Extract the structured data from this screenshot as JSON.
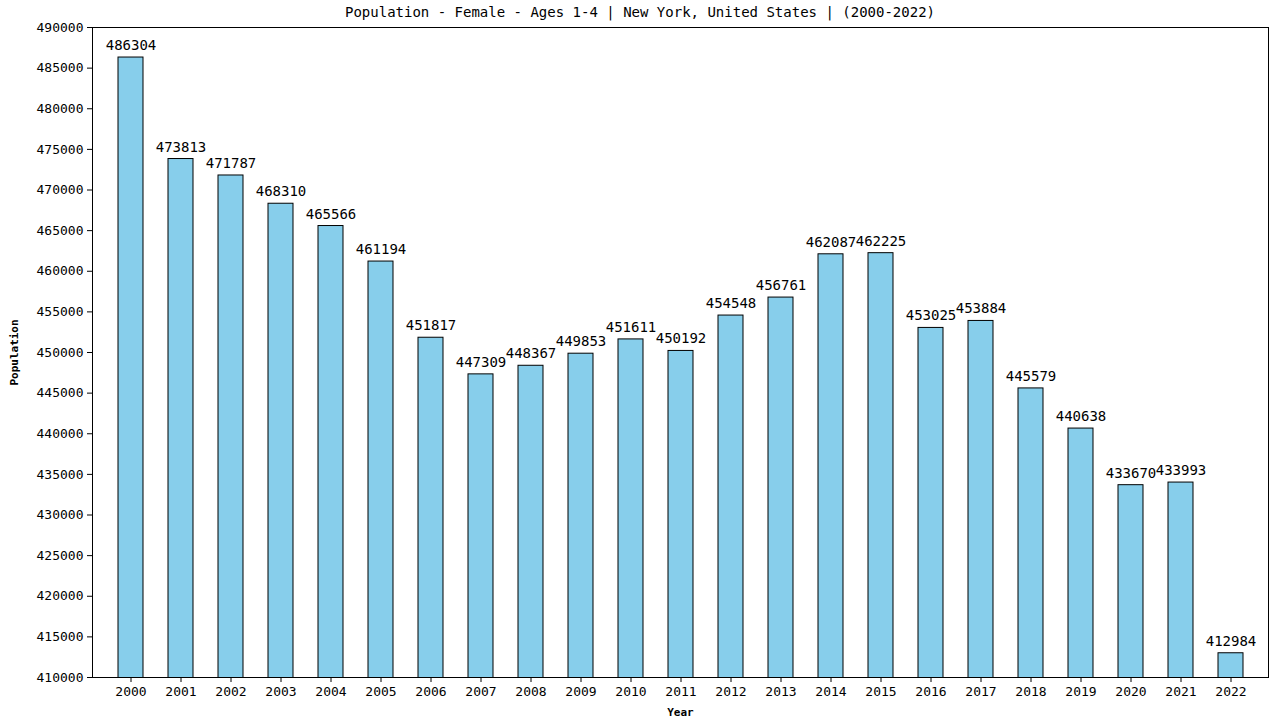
{
  "chart_data": {
    "type": "bar",
    "title": "Population - Female - Ages 1-4 | New York, United States |  (2000-2022)",
    "x_label": "Year",
    "y_label": "Population",
    "categories": [
      "2000",
      "2001",
      "2002",
      "2003",
      "2004",
      "2005",
      "2006",
      "2007",
      "2008",
      "2009",
      "2010",
      "2011",
      "2012",
      "2013",
      "2014",
      "2015",
      "2016",
      "2017",
      "2018",
      "2019",
      "2020",
      "2021",
      "2022"
    ],
    "values": [
      486304,
      473813,
      471787,
      468310,
      465566,
      461194,
      451817,
      447309,
      448367,
      449853,
      451611,
      450192,
      454548,
      456761,
      462087,
      462225,
      453025,
      453884,
      445579,
      440638,
      433670,
      433993,
      412984
    ],
    "color": "#87ceeb",
    "ylim": [
      410000,
      490000
    ],
    "yticks": [
      410000,
      415000,
      420000,
      425000,
      430000,
      435000,
      440000,
      445000,
      450000,
      455000,
      460000,
      465000,
      470000,
      475000,
      480000,
      485000,
      490000
    ],
    "grid": false,
    "data_labels": true
  }
}
